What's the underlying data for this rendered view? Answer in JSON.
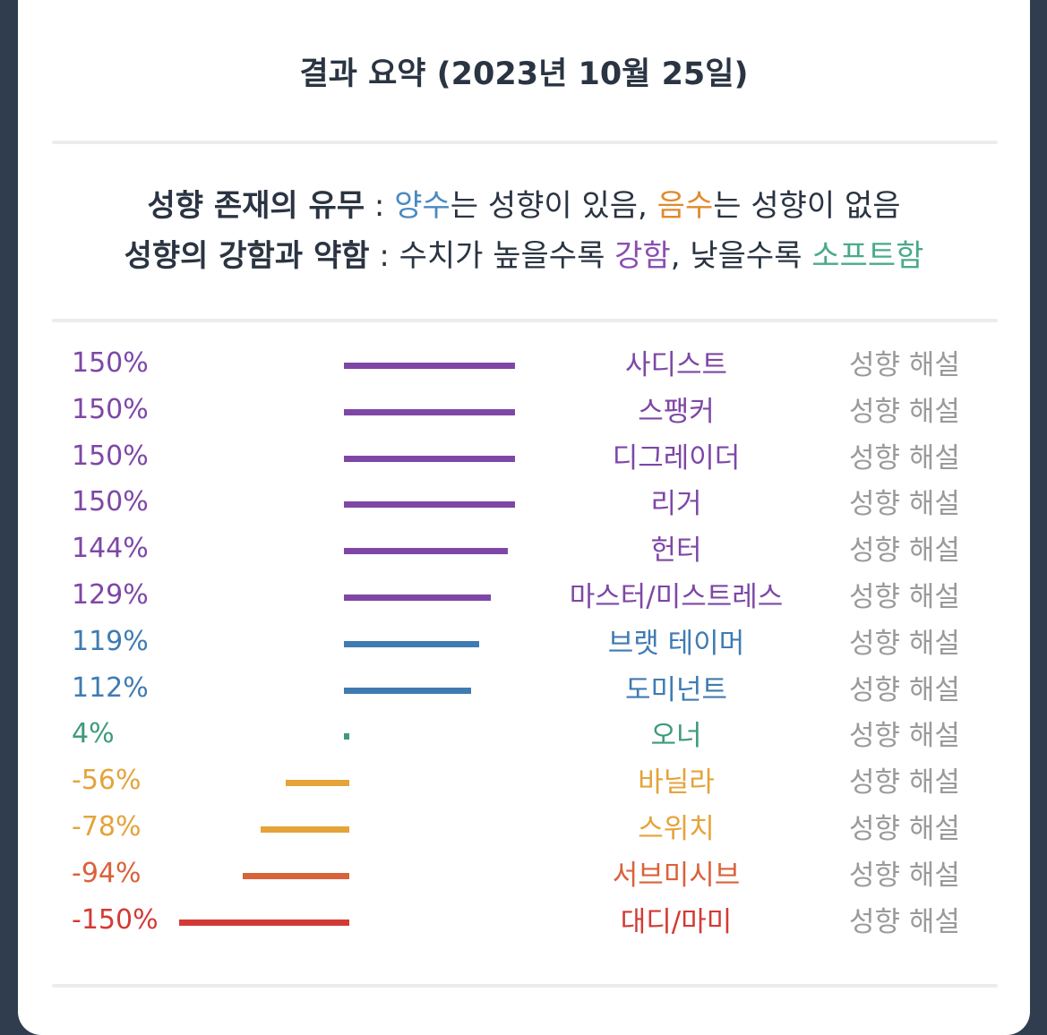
{
  "title": "결과 요약 (2023년 10월 25일)",
  "legend": {
    "line1": {
      "label": "성향 존재의 유무",
      "sep": " : ",
      "positive": "양수",
      "text1": "는 성향이 있음, ",
      "negative": "음수",
      "text2": "는 성향이 없음"
    },
    "line2": {
      "label": "성향의 강함과 약함",
      "sep": " : ",
      "text1": "수치가 높을수록 ",
      "strong": "강함",
      "text2": ", 낮을수록 ",
      "soft": "소프트함"
    }
  },
  "colors": {
    "positive": "#4a8ac2",
    "negative": "#e08a2e",
    "strong": "#8a4fb0",
    "soft": "#4aaa8a",
    "purple": "#7e47a5",
    "blue": "#3f7bb2",
    "green": "#3f9a7a",
    "orange": "#e5a33a",
    "redorange": "#d9623a",
    "red": "#d33a35"
  },
  "results": [
    {
      "percent_label": "150%",
      "value": 150,
      "name": "사디스트",
      "color": "purple",
      "action": "성향 해설"
    },
    {
      "percent_label": "150%",
      "value": 150,
      "name": "스팽커",
      "color": "purple",
      "action": "성향 해설"
    },
    {
      "percent_label": "150%",
      "value": 150,
      "name": "디그레이더",
      "color": "purple",
      "action": "성향 해설"
    },
    {
      "percent_label": "150%",
      "value": 150,
      "name": "리거",
      "color": "purple",
      "action": "성향 해설"
    },
    {
      "percent_label": "144%",
      "value": 144,
      "name": "헌터",
      "color": "purple",
      "action": "성향 해설"
    },
    {
      "percent_label": "129%",
      "value": 129,
      "name": "마스터/미스트레스",
      "color": "purple",
      "action": "성향 해설"
    },
    {
      "percent_label": "119%",
      "value": 119,
      "name": "브랫 테이머",
      "color": "blue",
      "action": "성향 해설"
    },
    {
      "percent_label": "112%",
      "value": 112,
      "name": "도미넌트",
      "color": "blue",
      "action": "성향 해설"
    },
    {
      "percent_label": "4%",
      "value": 4,
      "name": "오너",
      "color": "green",
      "action": "성향 해설"
    },
    {
      "percent_label": "-56%",
      "value": -56,
      "name": "바닐라",
      "color": "orange",
      "action": "성향 해설"
    },
    {
      "percent_label": "-78%",
      "value": -78,
      "name": "스위치",
      "color": "orange",
      "action": "성향 해설"
    },
    {
      "percent_label": "-94%",
      "value": -94,
      "name": "서브미시브",
      "color": "redorange",
      "action": "성향 해설"
    },
    {
      "percent_label": "-150%",
      "value": -150,
      "name": "대디/마미",
      "color": "red",
      "action": "성향 해설"
    }
  ]
}
